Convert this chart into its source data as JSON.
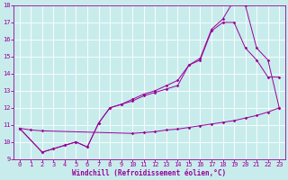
{
  "background_color": "#c8ecec",
  "grid_color": "#ffffff",
  "line_color": "#990099",
  "line1": {
    "x": [
      0,
      1,
      2,
      10,
      11,
      12,
      13,
      14,
      15,
      16,
      17,
      18,
      19,
      20,
      21,
      22,
      23
    ],
    "y": [
      10.8,
      10.7,
      10.65,
      10.5,
      10.55,
      10.6,
      10.7,
      10.75,
      10.85,
      10.95,
      11.05,
      11.15,
      11.25,
      11.4,
      11.55,
      11.75,
      12.0
    ]
  },
  "line2": {
    "x": [
      0,
      2,
      3,
      4,
      5,
      6,
      7,
      8,
      9,
      10,
      11,
      12,
      13,
      14,
      15,
      16,
      17,
      18,
      19,
      20,
      21,
      22,
      23
    ],
    "y": [
      10.8,
      9.4,
      9.6,
      9.8,
      10.0,
      9.7,
      11.1,
      12.0,
      12.2,
      12.4,
      12.7,
      12.9,
      13.1,
      13.3,
      14.5,
      14.8,
      16.5,
      17.0,
      17.0,
      15.5,
      14.8,
      13.8,
      13.8
    ]
  },
  "line3": {
    "x": [
      0,
      2,
      3,
      4,
      5,
      6,
      7,
      8,
      9,
      10,
      11,
      12,
      13,
      14,
      15,
      16,
      17,
      18,
      19,
      20,
      21,
      22,
      23
    ],
    "y": [
      10.8,
      9.4,
      9.6,
      9.8,
      10.0,
      9.7,
      11.1,
      12.0,
      12.2,
      12.5,
      12.8,
      13.0,
      13.3,
      13.6,
      14.5,
      14.9,
      16.6,
      17.2,
      18.3,
      18.0,
      15.5,
      14.8,
      12.0
    ]
  },
  "xlabel": "Windchill (Refroidissement éolien,°C)",
  "xlim": [
    -0.5,
    23.5
  ],
  "ylim": [
    9,
    18
  ],
  "yticks": [
    9,
    10,
    11,
    12,
    13,
    14,
    15,
    16,
    17,
    18
  ],
  "xticks": [
    0,
    1,
    2,
    3,
    4,
    5,
    6,
    7,
    8,
    9,
    10,
    11,
    12,
    13,
    14,
    15,
    16,
    17,
    18,
    19,
    20,
    21,
    22,
    23
  ],
  "tick_fontsize": 5.0,
  "xlabel_fontsize": 5.5
}
